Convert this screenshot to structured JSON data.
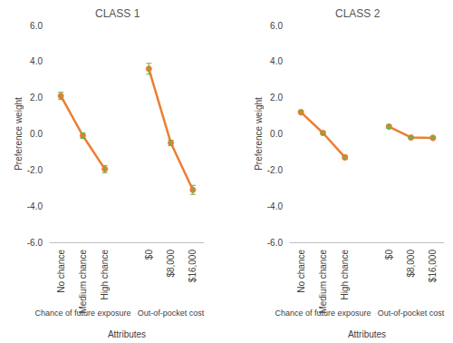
{
  "chart_data": [
    {
      "type": "line",
      "title": "CLASS 1",
      "xlabel": "Attributes",
      "ylabel": "Preference weight",
      "categories": [
        "No chance",
        "Medium chance",
        "High chance",
        null,
        "$0",
        "$8,000",
        "$16,000"
      ],
      "values": [
        2.1,
        -0.1,
        -1.95,
        null,
        3.6,
        -0.5,
        -3.1
      ],
      "errors": [
        0.2,
        0.15,
        0.2,
        null,
        0.3,
        0.15,
        0.25
      ],
      "groups": [
        {
          "label": "Chance of future exposure",
          "categories": [
            "No chance",
            "Medium chance",
            "High chance"
          ]
        },
        {
          "label": "Out-of-pocket cost",
          "categories": [
            "$0",
            "$8,000",
            "$16,000"
          ]
        }
      ],
      "color": "#ed7d31",
      "marker": "circle",
      "ylim": [
        -6,
        6
      ],
      "yticks": [
        {
          "value": -6,
          "label": "-6.0"
        },
        {
          "value": -4,
          "label": "-4.0"
        },
        {
          "value": -2,
          "label": "-2.0"
        },
        {
          "value": 0,
          "label": "0.0"
        },
        {
          "value": 2,
          "label": "2.0"
        },
        {
          "value": 4,
          "label": "4.0"
        },
        {
          "value": 6,
          "label": "6.0"
        }
      ],
      "grid": false
    },
    {
      "type": "line",
      "title": "CLASS 2",
      "xlabel": "Attributes",
      "ylabel": "Preference weight",
      "categories": [
        "No chance",
        "Medium chance",
        "High chance",
        null,
        "$0",
        "$8,000",
        "$16,000"
      ],
      "values": [
        1.2,
        0.05,
        -1.3,
        null,
        0.4,
        -0.2,
        -0.22
      ],
      "errors": [
        0.08,
        0.08,
        0.1,
        null,
        0.1,
        0.06,
        0.06
      ],
      "groups": [
        {
          "label": "Chance of future exposure",
          "categories": [
            "No chance",
            "Medium chance",
            "High chance"
          ]
        },
        {
          "label": "Out-of-pocket cost",
          "categories": [
            "$0",
            "$8,000",
            "$16,000"
          ]
        }
      ],
      "color": "#ed7d31",
      "marker": "circle",
      "ylim": [
        -6,
        6
      ],
      "yticks": [
        {
          "value": -6,
          "label": "-6.0"
        },
        {
          "value": -4,
          "label": "-4.0"
        },
        {
          "value": -2,
          "label": "-2.0"
        },
        {
          "value": 0,
          "label": "0.0"
        },
        {
          "value": 2,
          "label": "2.0"
        },
        {
          "value": 4,
          "label": "4.0"
        },
        {
          "value": 6,
          "label": "6.0"
        }
      ],
      "grid": false
    }
  ]
}
